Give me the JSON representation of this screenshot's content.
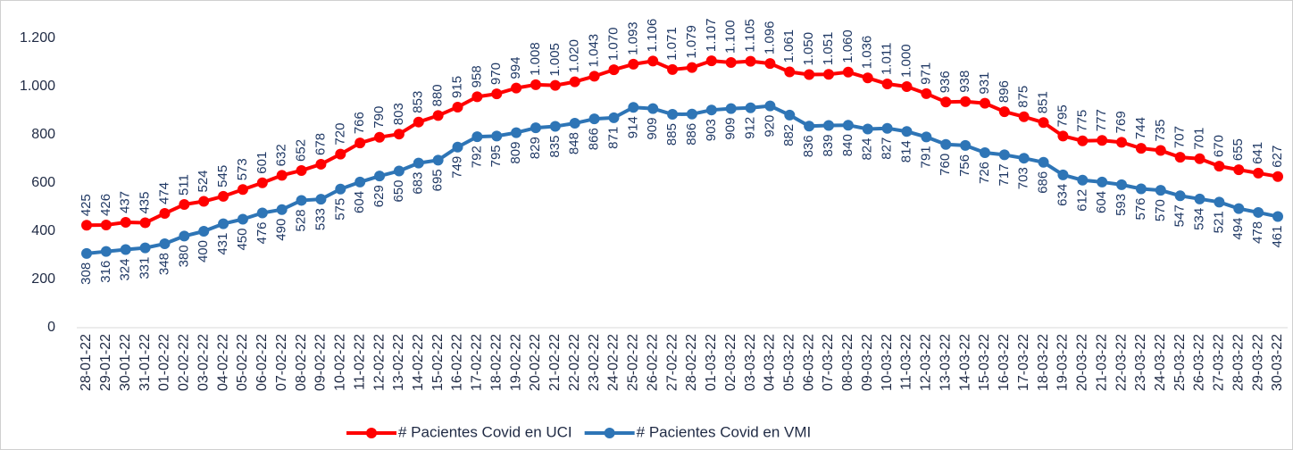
{
  "chart_data": {
    "type": "line",
    "categories": [
      "28-01-22",
      "29-01-22",
      "30-01-22",
      "31-01-22",
      "01-02-22",
      "02-02-22",
      "03-02-22",
      "04-02-22",
      "05-02-22",
      "06-02-22",
      "07-02-22",
      "08-02-22",
      "09-02-22",
      "10-02-22",
      "11-02-22",
      "12-02-22",
      "13-02-22",
      "14-02-22",
      "15-02-22",
      "16-02-22",
      "17-02-22",
      "18-02-22",
      "19-02-22",
      "20-02-22",
      "21-02-22",
      "22-02-22",
      "23-02-22",
      "24-02-22",
      "25-02-22",
      "26-02-22",
      "27-02-22",
      "28-02-22",
      "01-03-22",
      "02-03-22",
      "03-03-22",
      "04-03-22",
      "05-03-22",
      "06-03-22",
      "07-03-22",
      "08-03-22",
      "09-03-22",
      "10-03-22",
      "11-03-22",
      "12-03-22",
      "13-03-22",
      "14-03-22",
      "15-03-22",
      "16-03-22",
      "17-03-22",
      "18-03-22",
      "19-03-22",
      "20-03-22",
      "21-03-22",
      "22-03-22",
      "23-03-22",
      "24-03-22",
      "25-03-22",
      "26-03-22",
      "27-03-22",
      "28-03-22",
      "29-03-22",
      "30-03-22"
    ],
    "series": [
      {
        "name": "# Pacientes Covid en UCI",
        "color": "#ff0000",
        "label_side": "above",
        "values": [
          425,
          426,
          437,
          435,
          474,
          511,
          524,
          545,
          573,
          601,
          632,
          652,
          678,
          720,
          766,
          790,
          803,
          853,
          880,
          915,
          958,
          970,
          994,
          1008,
          1005,
          1020,
          1043,
          1070,
          1093,
          1106,
          1071,
          1079,
          1107,
          1100,
          1105,
          1096,
          1061,
          1050,
          1051,
          1060,
          1036,
          1011,
          1000,
          971,
          936,
          938,
          931,
          896,
          875,
          851,
          795,
          775,
          777,
          769,
          744,
          735,
          707,
          701,
          670,
          655,
          641,
          627
        ],
        "value_labels": [
          "425",
          "426",
          "437",
          "435",
          "474",
          "511",
          "524",
          "545",
          "573",
          "601",
          "632",
          "652",
          "678",
          "720",
          "766",
          "790",
          "803",
          "853",
          "880",
          "915",
          "958",
          "970",
          "994",
          "1.008",
          "1.005",
          "1.020",
          "1.043",
          "1.070",
          "1.093",
          "1.106",
          "1.071",
          "1.079",
          "1.107",
          "1.100",
          "1.105",
          "1.096",
          "1.061",
          "1.050",
          "1.051",
          "1.060",
          "1.036",
          "1.011",
          "1.000",
          "971",
          "936",
          "938",
          "931",
          "896",
          "875",
          "851",
          "795",
          "775",
          "777",
          "769",
          "744",
          "735",
          "707",
          "701",
          "670",
          "655",
          "641",
          "627"
        ]
      },
      {
        "name": "# Pacientes Covid en VMI",
        "color": "#2e75b6",
        "label_side": "below",
        "values": [
          308,
          316,
          324,
          331,
          348,
          380,
          400,
          431,
          450,
          476,
          490,
          528,
          533,
          575,
          604,
          629,
          650,
          683,
          695,
          749,
          792,
          795,
          809,
          829,
          835,
          848,
          866,
          871,
          914,
          909,
          885,
          886,
          903,
          909,
          912,
          920,
          882,
          836,
          839,
          840,
          824,
          827,
          814,
          791,
          760,
          756,
          726,
          717,
          703,
          686,
          634,
          612,
          604,
          593,
          576,
          570,
          547,
          534,
          521,
          494,
          478,
          461
        ]
      }
    ],
    "ylim": [
      0,
      1200
    ],
    "yticks": [
      0,
      200,
      400,
      600,
      800,
      {
        "value": 1000,
        "label": "1.000"
      },
      {
        "value": 1200,
        "label": "1.200"
      }
    ],
    "grid": false,
    "legend": "bottom"
  }
}
